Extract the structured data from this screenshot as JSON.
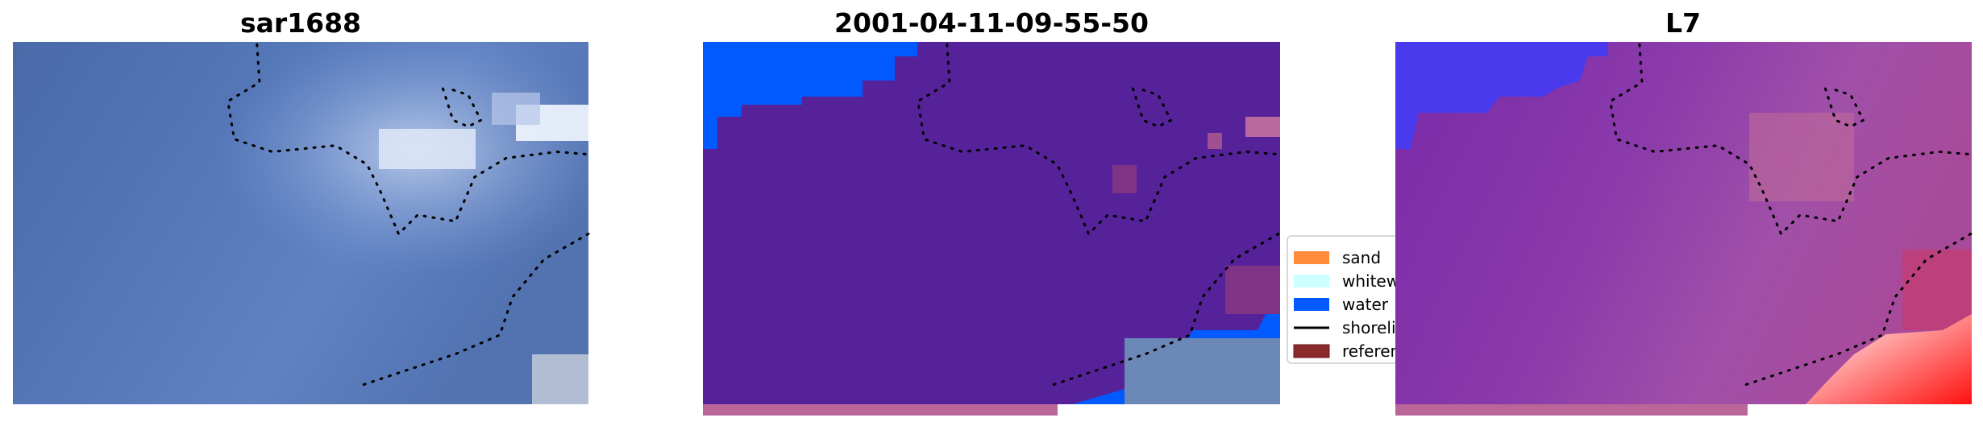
{
  "panels": [
    {
      "title": "sar1688"
    },
    {
      "title": "2001-04-11-09-55-50"
    },
    {
      "title": "L7"
    }
  ],
  "legend": {
    "items": [
      {
        "label": "sand",
        "color": "#ff8c3a",
        "kind": "patch"
      },
      {
        "label": "whitewater",
        "color": "#ccffff",
        "kind": "patch"
      },
      {
        "label": "water",
        "color": "#005aff",
        "kind": "patch"
      },
      {
        "label": "shoreline",
        "color": "#000000",
        "kind": "line"
      },
      {
        "label": "reference",
        "color": "#8b2a2a",
        "kind": "patch"
      }
    ]
  },
  "colors": {
    "classified_background": "#55229a",
    "water": "#005aff",
    "bottom_band": "#bb6699"
  }
}
